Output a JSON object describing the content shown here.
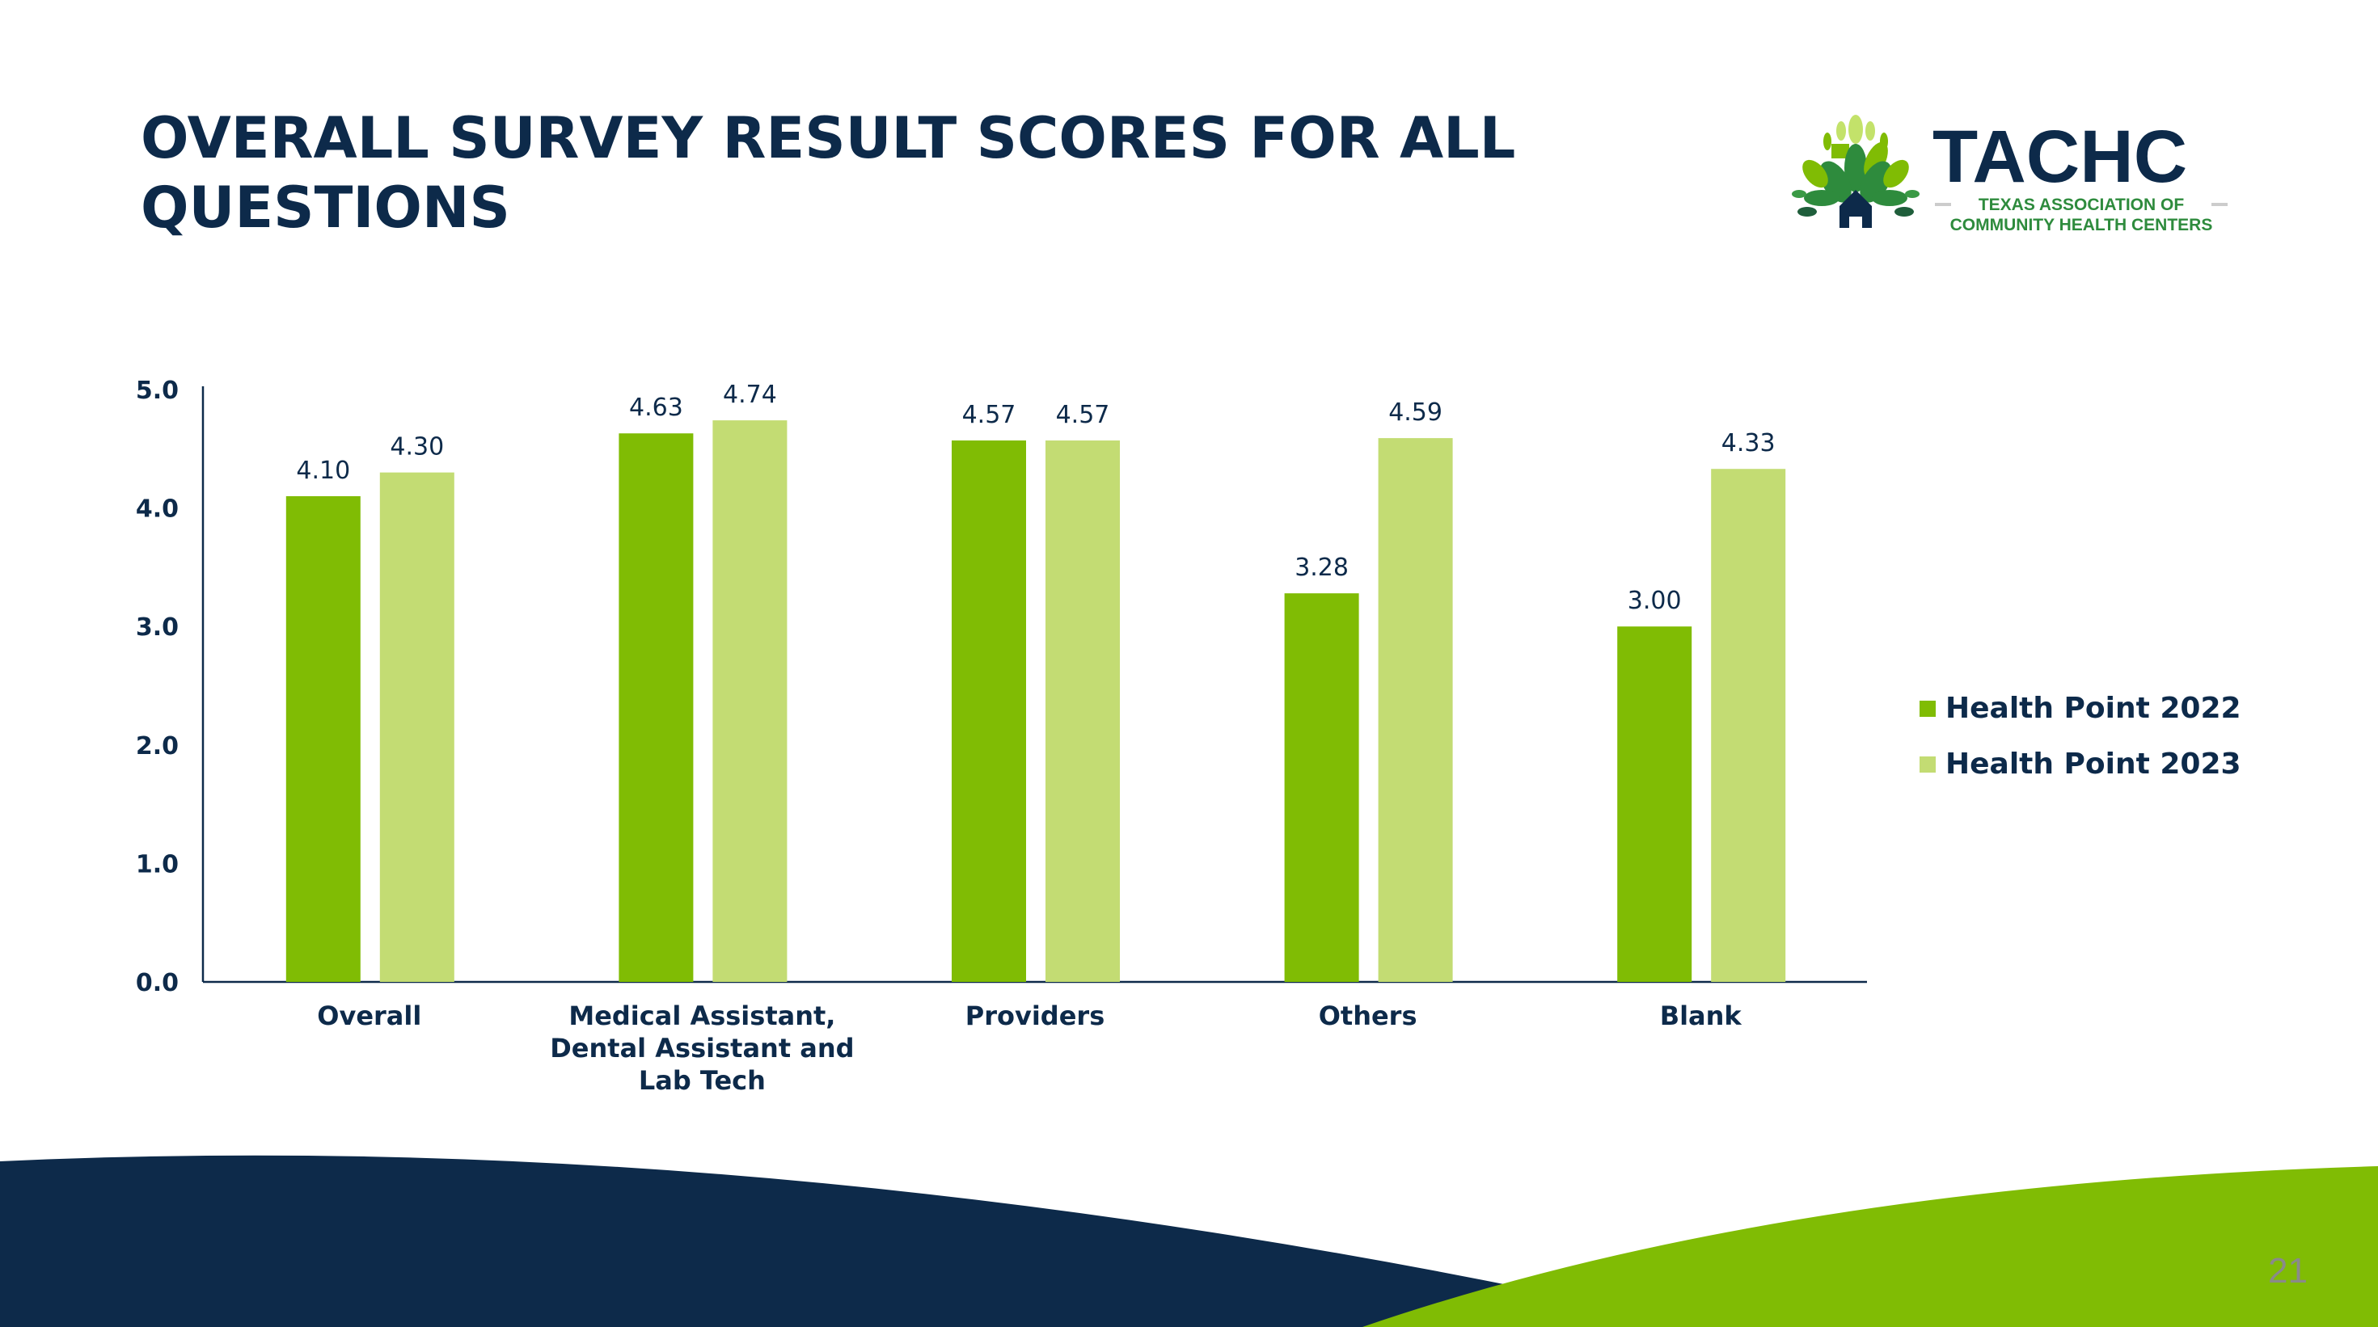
{
  "title": "OVERALL SURVEY RESULT SCORES FOR ALL QUESTIONS",
  "logo": {
    "name": "TACHC",
    "subtitle_line1": "TEXAS ASSOCIATION OF",
    "subtitle_line2": "COMMUNITY HEALTH CENTERS"
  },
  "page_number": "21",
  "colors": {
    "navy": "#0d2a4a",
    "green_2022": "#80bc04",
    "green_2023": "#c3dc73"
  },
  "chart_data": {
    "type": "bar",
    "title": "",
    "xlabel": "",
    "ylabel": "",
    "ylim": [
      0,
      5
    ],
    "yticks": [
      "0.0",
      "1.0",
      "2.0",
      "3.0",
      "4.0",
      "5.0"
    ],
    "categories": [
      [
        "Overall"
      ],
      [
        "Medical Assistant,",
        "Dental Assistant and",
        "Lab Tech"
      ],
      [
        "Providers"
      ],
      [
        "Others"
      ],
      [
        "Blank"
      ]
    ],
    "series": [
      {
        "name": "Health Point 2022",
        "color": "#80bc04",
        "values": [
          4.1,
          4.63,
          4.57,
          3.28,
          3.0
        ],
        "labels": [
          "4.10",
          "4.63",
          "4.57",
          "3.28",
          "3.00"
        ]
      },
      {
        "name": "Health Point 2023",
        "color": "#c3dc73",
        "values": [
          4.3,
          4.74,
          4.57,
          4.59,
          4.33
        ],
        "labels": [
          "4.30",
          "4.74",
          "4.57",
          "4.59",
          "4.33"
        ]
      }
    ],
    "legend_position": "right",
    "grid": false
  }
}
